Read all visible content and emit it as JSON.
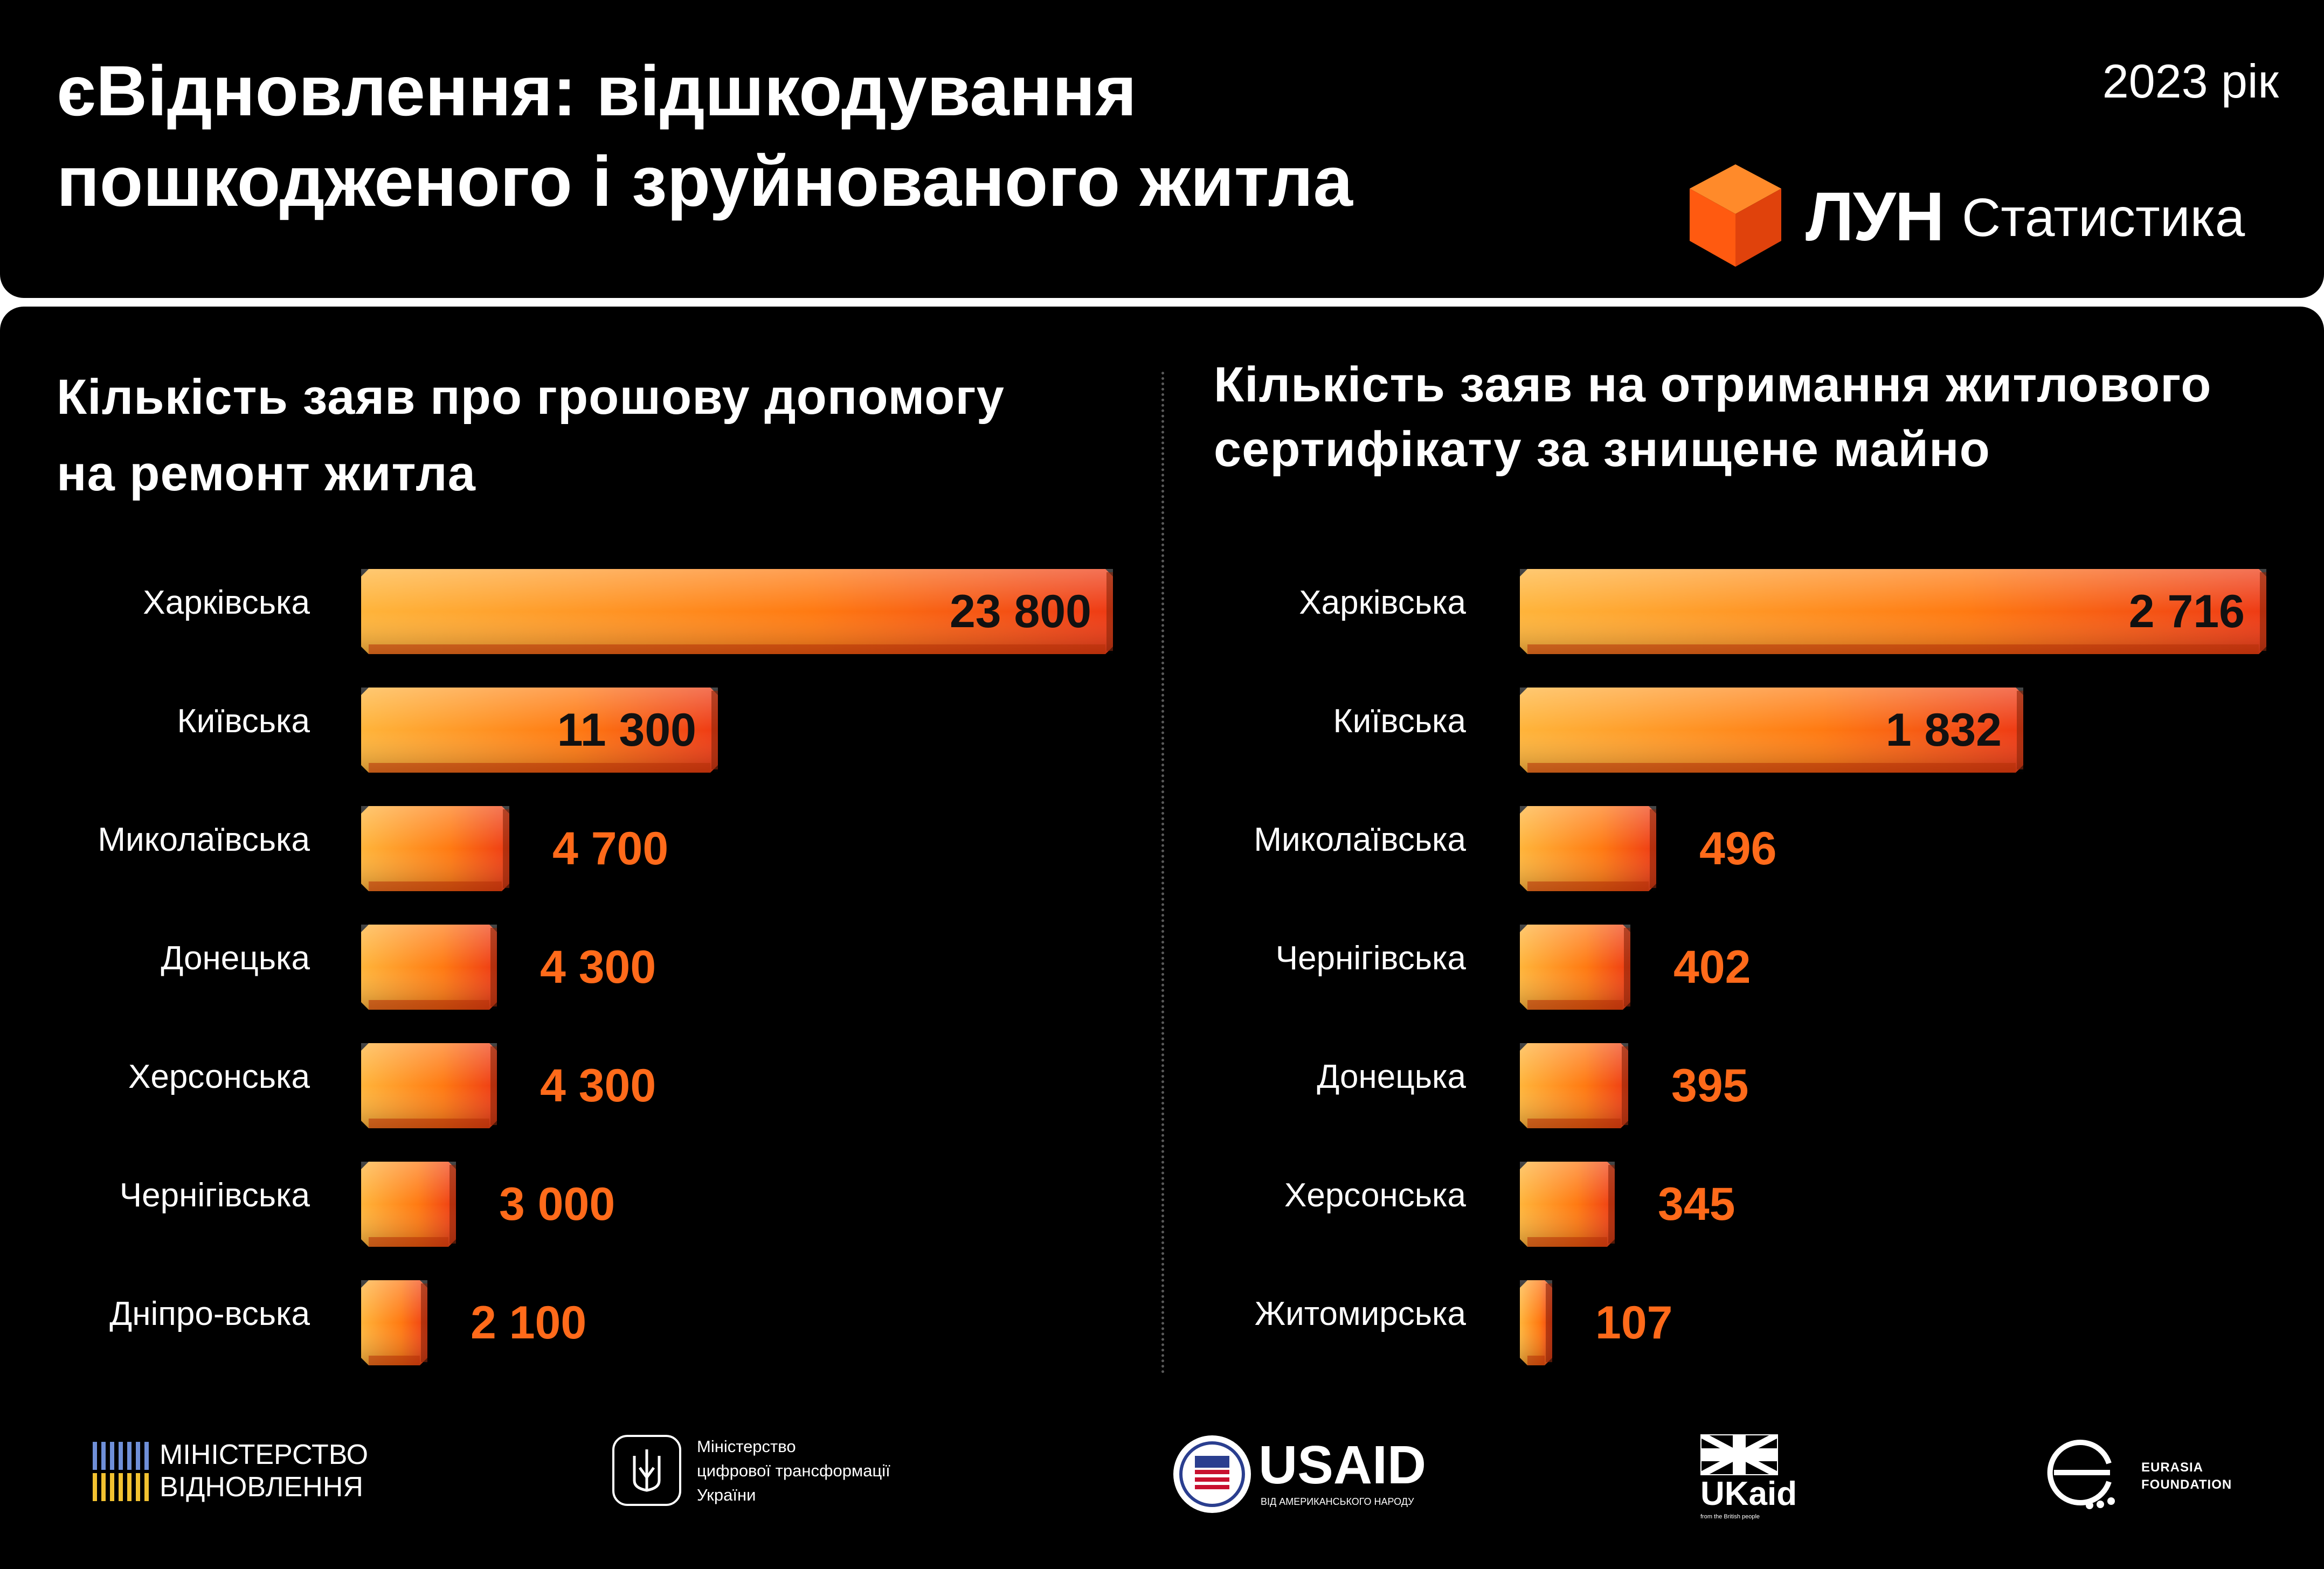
{
  "header": {
    "title_line1": "єВідновлення: відшкодування",
    "title_line2": "пошкодженого і зруйнованого житла",
    "year": "2023 рік",
    "brand_name": "ЛУН",
    "brand_sub": "Статистика",
    "brand_icon": "orange-cube-icon"
  },
  "colors": {
    "bar_light": "#ffb43a",
    "bar_mid": "#ff7a12",
    "bar_dark": "#ee3a14",
    "value_inside": "#111111",
    "value_outside": "#ff6a1a",
    "brand_orange": "#ff6a13"
  },
  "chart_data": [
    {
      "type": "bar",
      "orientation": "horizontal",
      "title_line1": "Кількість заяв про грошову допомогу",
      "title_line2": "на ремонт житла",
      "categories": [
        "Харківська",
        "Київська",
        "Миколаївська",
        "Донецька",
        "Херсонська",
        "Чернігівська",
        "Дніпро-вська"
      ],
      "values": [
        23800,
        11300,
        4700,
        4300,
        4300,
        3000,
        2100
      ],
      "value_labels": [
        "23 800",
        "11 300",
        "4 700",
        "4 300",
        "4 300",
        "3 000",
        "2 100"
      ],
      "xlim": [
        0,
        23800
      ]
    },
    {
      "type": "bar",
      "orientation": "horizontal",
      "title_line1": "Кількість заяв на отримання житлового",
      "title_line2": "сертифікату за знищене майно",
      "categories": [
        "Харківська",
        "Київська",
        "Миколаївська",
        "Чернігівська",
        "Донецька",
        "Херсонська",
        "Житомирська"
      ],
      "values": [
        2716,
        1832,
        496,
        402,
        395,
        345,
        107
      ],
      "value_labels": [
        "2 716",
        "1 832",
        "496",
        "402",
        "395",
        "345",
        "107"
      ],
      "xlim": [
        0,
        2716
      ]
    }
  ],
  "footer": {
    "logos": [
      {
        "icon": "ministry-stripes-icon",
        "line1": "МІНІСТЕРСТВО",
        "line2": "ВІДНОВЛЕННЯ"
      },
      {
        "icon": "trident-icon",
        "line1": "Міністерство",
        "line2": "цифрової трансформації",
        "line3": "України"
      },
      {
        "icon": "usaid-seal-icon",
        "name": "USAID",
        "tagline": "ВІД АМЕРИКАНСЬКОГО НАРОДУ"
      },
      {
        "icon": "union-jack-icon",
        "name": "UKaid",
        "tagline": "from the British people"
      },
      {
        "icon": "eurasia-e-icon",
        "line1": "EURASIA",
        "line2": "FOUNDATION"
      }
    ]
  }
}
